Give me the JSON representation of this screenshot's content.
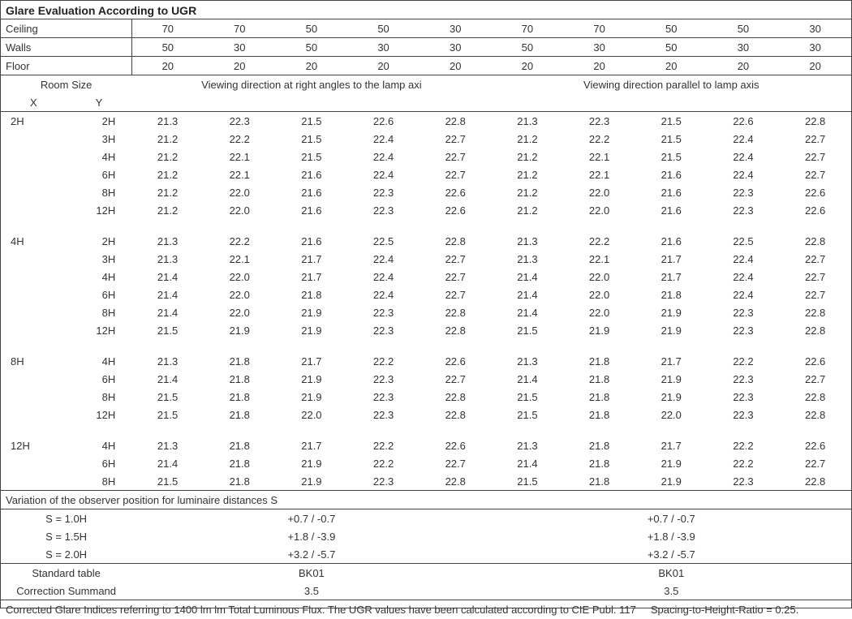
{
  "title": "Glare Evaluation According to UGR",
  "header_rows": [
    {
      "label": "Ceiling",
      "left": [
        "70",
        "70",
        "50",
        "50",
        "30"
      ],
      "right": [
        "70",
        "70",
        "50",
        "50",
        "30"
      ]
    },
    {
      "label": "Walls",
      "left": [
        "50",
        "30",
        "50",
        "30",
        "30"
      ],
      "right": [
        "50",
        "30",
        "50",
        "30",
        "30"
      ]
    },
    {
      "label": "Floor",
      "left": [
        "20",
        "20",
        "20",
        "20",
        "20"
      ],
      "right": [
        "20",
        "20",
        "20",
        "20",
        "20"
      ]
    }
  ],
  "roomsize_label": "Room Size",
  "x_label": "X",
  "y_label": "Y",
  "view_left": "Viewing direction at right angles to the lamp axi",
  "view_right": "Viewing direction parallel to lamp axis",
  "groups": [
    {
      "x": "2H",
      "rows": [
        {
          "y": "2H",
          "l": [
            "21.3",
            "22.3",
            "21.5",
            "22.6",
            "22.8"
          ],
          "r": [
            "21.3",
            "22.3",
            "21.5",
            "22.6",
            "22.8"
          ]
        },
        {
          "y": "3H",
          "l": [
            "21.2",
            "22.2",
            "21.5",
            "22.4",
            "22.7"
          ],
          "r": [
            "21.2",
            "22.2",
            "21.5",
            "22.4",
            "22.7"
          ]
        },
        {
          "y": "4H",
          "l": [
            "21.2",
            "22.1",
            "21.5",
            "22.4",
            "22.7"
          ],
          "r": [
            "21.2",
            "22.1",
            "21.5",
            "22.4",
            "22.7"
          ]
        },
        {
          "y": "6H",
          "l": [
            "21.2",
            "22.1",
            "21.6",
            "22.4",
            "22.7"
          ],
          "r": [
            "21.2",
            "22.1",
            "21.6",
            "22.4",
            "22.7"
          ]
        },
        {
          "y": "8H",
          "l": [
            "21.2",
            "22.0",
            "21.6",
            "22.3",
            "22.6"
          ],
          "r": [
            "21.2",
            "22.0",
            "21.6",
            "22.3",
            "22.6"
          ]
        },
        {
          "y": "12H",
          "l": [
            "21.2",
            "22.0",
            "21.6",
            "22.3",
            "22.6"
          ],
          "r": [
            "21.2",
            "22.0",
            "21.6",
            "22.3",
            "22.6"
          ]
        }
      ]
    },
    {
      "x": "4H",
      "rows": [
        {
          "y": "2H",
          "l": [
            "21.3",
            "22.2",
            "21.6",
            "22.5",
            "22.8"
          ],
          "r": [
            "21.3",
            "22.2",
            "21.6",
            "22.5",
            "22.8"
          ]
        },
        {
          "y": "3H",
          "l": [
            "21.3",
            "22.1",
            "21.7",
            "22.4",
            "22.7"
          ],
          "r": [
            "21.3",
            "22.1",
            "21.7",
            "22.4",
            "22.7"
          ]
        },
        {
          "y": "4H",
          "l": [
            "21.4",
            "22.0",
            "21.7",
            "22.4",
            "22.7"
          ],
          "r": [
            "21.4",
            "22.0",
            "21.7",
            "22.4",
            "22.7"
          ]
        },
        {
          "y": "6H",
          "l": [
            "21.4",
            "22.0",
            "21.8",
            "22.4",
            "22.7"
          ],
          "r": [
            "21.4",
            "22.0",
            "21.8",
            "22.4",
            "22.7"
          ]
        },
        {
          "y": "8H",
          "l": [
            "21.4",
            "22.0",
            "21.9",
            "22.3",
            "22.8"
          ],
          "r": [
            "21.4",
            "22.0",
            "21.9",
            "22.3",
            "22.8"
          ]
        },
        {
          "y": "12H",
          "l": [
            "21.5",
            "21.9",
            "21.9",
            "22.3",
            "22.8"
          ],
          "r": [
            "21.5",
            "21.9",
            "21.9",
            "22.3",
            "22.8"
          ]
        }
      ]
    },
    {
      "x": "8H",
      "rows": [
        {
          "y": "4H",
          "l": [
            "21.3",
            "21.8",
            "21.7",
            "22.2",
            "22.6"
          ],
          "r": [
            "21.3",
            "21.8",
            "21.7",
            "22.2",
            "22.6"
          ]
        },
        {
          "y": "6H",
          "l": [
            "21.4",
            "21.8",
            "21.9",
            "22.3",
            "22.7"
          ],
          "r": [
            "21.4",
            "21.8",
            "21.9",
            "22.3",
            "22.7"
          ]
        },
        {
          "y": "8H",
          "l": [
            "21.5",
            "21.8",
            "21.9",
            "22.3",
            "22.8"
          ],
          "r": [
            "21.5",
            "21.8",
            "21.9",
            "22.3",
            "22.8"
          ]
        },
        {
          "y": "12H",
          "l": [
            "21.5",
            "21.8",
            "22.0",
            "22.3",
            "22.8"
          ],
          "r": [
            "21.5",
            "21.8",
            "22.0",
            "22.3",
            "22.8"
          ]
        }
      ]
    },
    {
      "x": "12H",
      "rows": [
        {
          "y": "4H",
          "l": [
            "21.3",
            "21.8",
            "21.7",
            "22.2",
            "22.6"
          ],
          "r": [
            "21.3",
            "21.8",
            "21.7",
            "22.2",
            "22.6"
          ]
        },
        {
          "y": "6H",
          "l": [
            "21.4",
            "21.8",
            "21.9",
            "22.2",
            "22.7"
          ],
          "r": [
            "21.4",
            "21.8",
            "21.9",
            "22.2",
            "22.7"
          ]
        },
        {
          "y": "8H",
          "l": [
            "21.5",
            "21.8",
            "21.9",
            "22.3",
            "22.8"
          ],
          "r": [
            "21.5",
            "21.8",
            "21.9",
            "22.3",
            "22.8"
          ]
        }
      ]
    }
  ],
  "variation_title": "Variation of the observer position for luminaire distances S",
  "s_rows": [
    {
      "label": "S = 1.0H",
      "left": "+0.7 / -0.7",
      "right": "+0.7 / -0.7"
    },
    {
      "label": "S = 1.5H",
      "left": "+1.8 / -3.9",
      "right": "+1.8 / -3.9"
    },
    {
      "label": "S = 2.0H",
      "left": "+3.2 / -5.7",
      "right": "+3.2 / -5.7"
    }
  ],
  "std_table_label": "Standard table",
  "std_table_left": "BK01",
  "std_table_right": "BK01",
  "corr_label": "Correction Summand",
  "corr_left": "3.5",
  "corr_right": "3.5",
  "footer_left": "Corrected Glare Indices referring to 1400 lm lm Total Luminous Flux. The UGR values have been calculated according to CIE Publ. 117",
  "footer_right": "Spacing-to-Height-Ratio = 0.25."
}
